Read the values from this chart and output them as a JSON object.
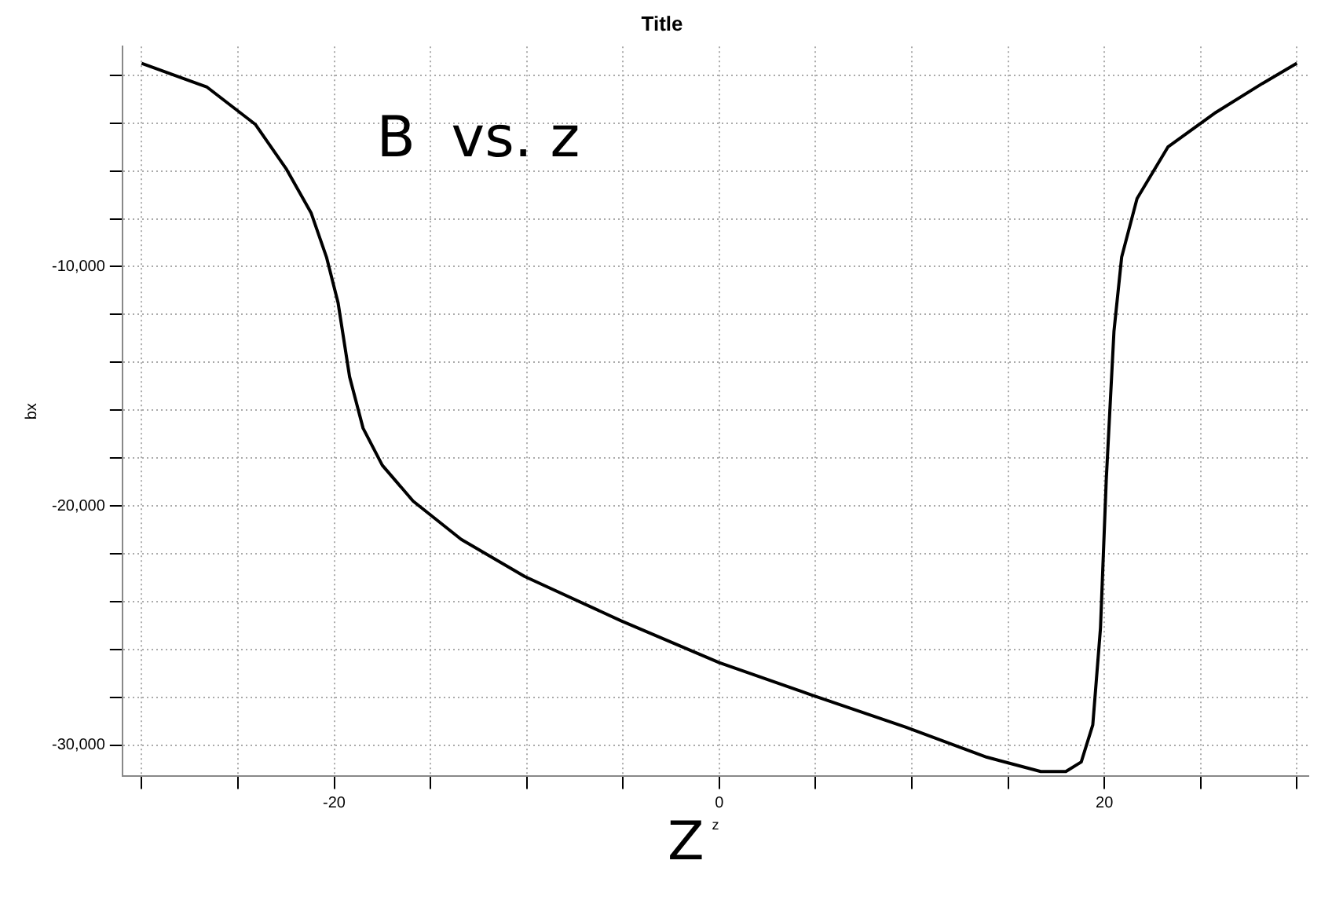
{
  "chart_data": {
    "type": "line",
    "title": "Title",
    "xlabel": "z",
    "ylabel": "bx",
    "annotations": [
      "B  vs. z",
      "Z"
    ],
    "x": [
      -30,
      -26.6,
      -24.1,
      -22.5,
      -21.2,
      -20.4,
      -19.8,
      -19.2,
      -18.5,
      -17.5,
      -15.9,
      -13.4,
      -10.1,
      -5.1,
      0,
      4.8,
      9.7,
      13.9,
      16.7,
      18,
      18.8,
      19.4,
      19.8,
      20.1,
      20.5,
      20.9,
      21.7,
      23.3,
      25.8,
      28.2,
      30
    ],
    "series": [
      {
        "color": "#000000",
        "values": [
          -1500,
          -2500,
          -4050,
          -5900,
          -7750,
          -9600,
          -11500,
          -14600,
          -16750,
          -18300,
          -19800,
          -21400,
          -22950,
          -24800,
          -26550,
          -27900,
          -29250,
          -30500,
          -31100,
          -31100,
          -30700,
          -29150,
          -25100,
          -18900,
          -12700,
          -9600,
          -7150,
          -5000,
          -3550,
          -2350,
          -1500
        ]
      }
    ],
    "xlim": [
      -31,
      30.6
    ],
    "ylim": [
      -31300,
      -800
    ],
    "xticks": [
      {
        "value": -30,
        "label": null
      },
      {
        "value": -25,
        "label": null
      },
      -20,
      {
        "value": -15,
        "label": null
      },
      {
        "value": -10,
        "label": null
      },
      {
        "value": -5,
        "label": null
      },
      0,
      {
        "value": 5,
        "label": null
      },
      {
        "value": 10,
        "label": null
      },
      {
        "value": 15,
        "label": null
      },
      20,
      {
        "value": 25,
        "label": null
      },
      {
        "value": 30,
        "label": null
      }
    ],
    "yticks": [
      {
        "value": -30000,
        "label": "-30,000"
      },
      {
        "value": -28000,
        "label": null
      },
      {
        "value": -26000,
        "label": null
      },
      {
        "value": -24000,
        "label": null
      },
      {
        "value": -22000,
        "label": null
      },
      {
        "value": -20000,
        "label": "-20,000"
      },
      {
        "value": -18000,
        "label": null
      },
      {
        "value": -16000,
        "label": null
      },
      {
        "value": -14000,
        "label": null
      },
      {
        "value": -12000,
        "label": null
      },
      {
        "value": -10000,
        "label": "-10,000"
      },
      {
        "value": -8000,
        "label": null
      },
      {
        "value": -6000,
        "label": null
      },
      {
        "value": -4000,
        "label": null
      },
      {
        "value": -2000,
        "label": null
      }
    ],
    "grid": true,
    "legend": false,
    "marker": "none",
    "line_style": "solid"
  }
}
